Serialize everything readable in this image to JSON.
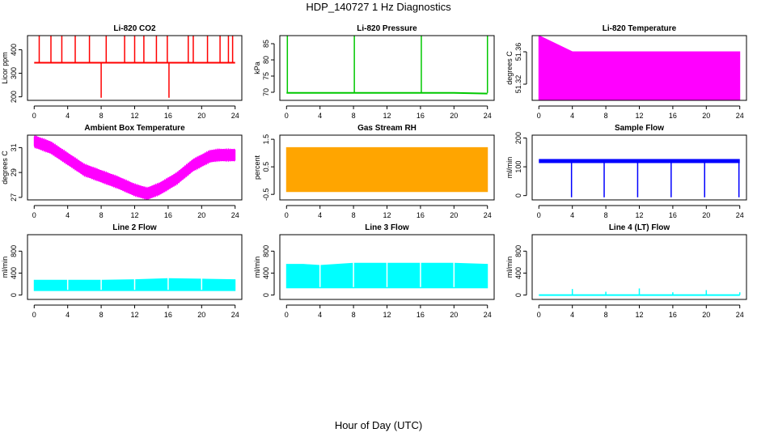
{
  "title": "HDP_140727  1 Hz Diagnostics",
  "xlabel": "Hour of Day (UTC)",
  "chart_data": [
    {
      "type": "line",
      "title": "Li-820 CO2",
      "ylabel": "Licor ppm",
      "color": "#ff0000",
      "ylim": [
        185,
        460
      ],
      "yticks": [
        200,
        300,
        400
      ],
      "x": [
        0,
        4,
        8,
        12,
        16,
        20,
        24
      ],
      "series": [
        {
          "values": [
            345,
            345,
            345,
            345,
            345,
            345,
            345
          ]
        }
      ],
      "spikes_up": [
        0.6,
        2.0,
        3.3,
        4.9,
        6.6,
        8.6,
        10.8,
        12.0,
        13.1,
        14.6,
        15.9,
        18.4,
        19.0,
        20.7,
        22.2,
        23.2,
        23.7
      ],
      "spikes_down": [
        8.0,
        16.1
      ]
    },
    {
      "type": "line",
      "title": "Li-820 Pressure",
      "ylabel": "kPa",
      "color": "#00c800",
      "ylim": [
        67.5,
        87.5
      ],
      "yticks": [
        70,
        75,
        80,
        85
      ],
      "x": [
        0,
        4,
        8,
        12,
        16,
        20,
        24
      ],
      "series": [
        {
          "values": [
            69.8,
            69.8,
            69.8,
            69.8,
            69.8,
            69.8,
            69.6
          ]
        }
      ],
      "spikes_up": [
        0.1,
        8.1,
        16.1,
        24.0
      ]
    },
    {
      "type": "area",
      "title": "Li-820 Temperature",
      "ylabel": "degrees C",
      "color": "#ff00ff",
      "ylim": [
        51.3,
        51.38
      ],
      "yticks": [
        51.32,
        51.36
      ],
      "x": [
        0,
        4,
        8,
        12,
        16,
        20,
        24
      ],
      "series": [
        {
          "low": 51.3,
          "high": [
            51.38,
            51.36,
            51.36,
            51.36,
            51.36,
            51.36,
            51.36
          ]
        }
      ]
    },
    {
      "type": "area",
      "title": "Ambient Box Temperature",
      "ylabel": "degrees C",
      "color": "#ff00ff",
      "ylim": [
        26.8,
        32.0
      ],
      "yticks": [
        27,
        29,
        31
      ],
      "x": [
        0,
        2,
        4,
        6,
        8,
        10,
        12,
        13.5,
        15,
        17,
        19,
        21,
        22,
        24
      ],
      "series": [
        {
          "values": [
            31.5,
            31.0,
            30.1,
            29.2,
            28.7,
            28.2,
            27.6,
            27.3,
            27.7,
            28.5,
            29.6,
            30.3,
            30.4,
            30.4
          ]
        }
      ]
    },
    {
      "type": "area",
      "title": "Gas Stream RH",
      "ylabel": "percent",
      "color": "#ffa500",
      "ylim": [
        -0.7,
        1.65
      ],
      "yticks": [
        -0.5,
        0.5,
        1.5
      ],
      "x": [
        0,
        4,
        8,
        12,
        16,
        20,
        24
      ],
      "series": [
        {
          "low": -0.4,
          "high": 1.2
        }
      ]
    },
    {
      "type": "line",
      "title": "Sample Flow",
      "ylabel": "ml/min",
      "color": "#0000ff",
      "ylim": [
        -15,
        210
      ],
      "yticks": [
        0,
        100,
        200
      ],
      "x": [
        0,
        4,
        8,
        12,
        16,
        20,
        24
      ],
      "series": [
        {
          "values": [
            120,
            120,
            120,
            120,
            120,
            120,
            120
          ]
        }
      ],
      "spikes_down": [
        3.9,
        7.8,
        11.8,
        15.8,
        19.8,
        23.9
      ]
    },
    {
      "type": "area",
      "title": "Line 2 Flow",
      "ylabel": "ml/min",
      "color": "#00ffff",
      "ylim": [
        -80,
        1100
      ],
      "yticks": [
        0,
        400,
        800
      ],
      "x": [
        0,
        4,
        8,
        12,
        16,
        20,
        24
      ],
      "series": [
        {
          "low": 80,
          "high": [
            270,
            270,
            270,
            280,
            300,
            290,
            280
          ]
        }
      ]
    },
    {
      "type": "area",
      "title": "Line 3 Flow",
      "ylabel": "ml/min",
      "color": "#00ffff",
      "ylim": [
        -80,
        1100
      ],
      "yticks": [
        0,
        400,
        800
      ],
      "x": [
        0,
        2,
        4,
        8,
        12,
        16,
        20,
        24
      ],
      "series": [
        {
          "low": 130,
          "high": [
            560,
            560,
            540,
            580,
            580,
            580,
            580,
            560
          ]
        }
      ]
    },
    {
      "type": "line",
      "title": "Line 4 (LT) Flow",
      "ylabel": "ml/min",
      "color": "#00ffff",
      "ylim": [
        -80,
        1100
      ],
      "yticks": [
        0,
        400,
        800
      ],
      "x": [
        0,
        4,
        8,
        12,
        16,
        20,
        24
      ],
      "series": [
        {
          "values": [
            0,
            0,
            0,
            0,
            0,
            0,
            0
          ]
        }
      ],
      "spikes_up": [
        4.0,
        8.0,
        12.0,
        16.0,
        20.0,
        24.0
      ],
      "spike_heights": [
        110,
        60,
        120,
        50,
        90,
        50
      ]
    }
  ],
  "xticks": [
    0,
    4,
    8,
    12,
    16,
    20,
    24
  ],
  "xlim": [
    -0.8,
    24.8
  ]
}
